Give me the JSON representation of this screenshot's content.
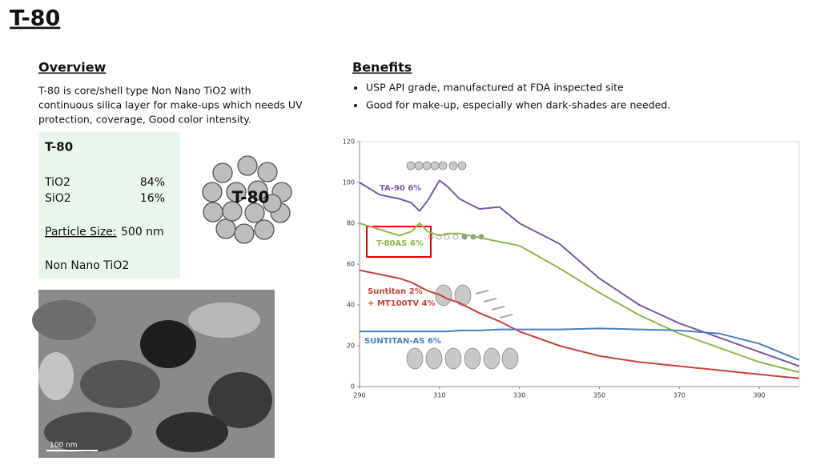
{
  "header": {
    "title": "T-80"
  },
  "overview": {
    "heading": "Overview",
    "lines": [
      "T-80 is core/shell type Non Nano TiO2 with",
      "continuous silica layer for make-ups which needs UV",
      "protection, coverage, Good color intensity."
    ]
  },
  "composition": {
    "title": "T-80",
    "rows": [
      [
        "TiO2",
        "84%"
      ],
      [
        "SiO2",
        "16%"
      ]
    ],
    "particle_size_label": "Particle Size:",
    "particle_size_value": "500 nm",
    "note": "Non Nano TiO2"
  },
  "particle_diagram": {
    "label": "T-80"
  },
  "tem_image": {
    "scale_label": "100 nm"
  },
  "benefits": {
    "heading": "Benefits",
    "items": [
      "USP API grade, manufactured at FDA inspected site",
      "Good for make-up, especially when dark-shades are needed."
    ]
  },
  "chart_data": {
    "type": "line",
    "x": [
      290,
      295,
      300,
      303,
      305,
      307,
      310,
      312,
      315,
      320,
      325,
      330,
      340,
      350,
      360,
      370,
      380,
      390,
      400
    ],
    "xlim": [
      290,
      400
    ],
    "xticks": [
      290,
      310,
      330,
      350,
      370,
      390
    ],
    "ylim": [
      0,
      120
    ],
    "yticks": [
      0,
      20,
      40,
      60,
      80,
      100,
      120
    ],
    "grid": false,
    "series": [
      {
        "label_lines": [
          "TA-90 6%"
        ],
        "color": "#7b57a6",
        "values": [
          100,
          94,
          92,
          90,
          86,
          91,
          101,
          98,
          92,
          87,
          88,
          80,
          70,
          53,
          40,
          31,
          24,
          17,
          10
        ]
      },
      {
        "label_lines": [
          "T-80AS 6%"
        ],
        "color": "#8db84a",
        "values": [
          80,
          77,
          74,
          76,
          80,
          76,
          74,
          75,
          75,
          73,
          71,
          69,
          58,
          46,
          35,
          26,
          19,
          12,
          7
        ]
      },
      {
        "label_lines": [
          "Suntitan 2%",
          "+ MT100TV 4%"
        ],
        "color": "#c8423b",
        "values": [
          57,
          55,
          53,
          51,
          49,
          47,
          45,
          43,
          41,
          36,
          32,
          27,
          20,
          15,
          12,
          10,
          8,
          6,
          4
        ]
      },
      {
        "label_lines": [
          "SUNTITAN-AS 6%"
        ],
        "color": "#4a7ec0",
        "values": [
          27,
          27,
          27,
          27,
          27,
          27,
          27,
          27,
          27.5,
          27.5,
          28,
          28,
          28,
          28.5,
          28,
          27.5,
          26,
          21,
          13
        ]
      }
    ]
  }
}
